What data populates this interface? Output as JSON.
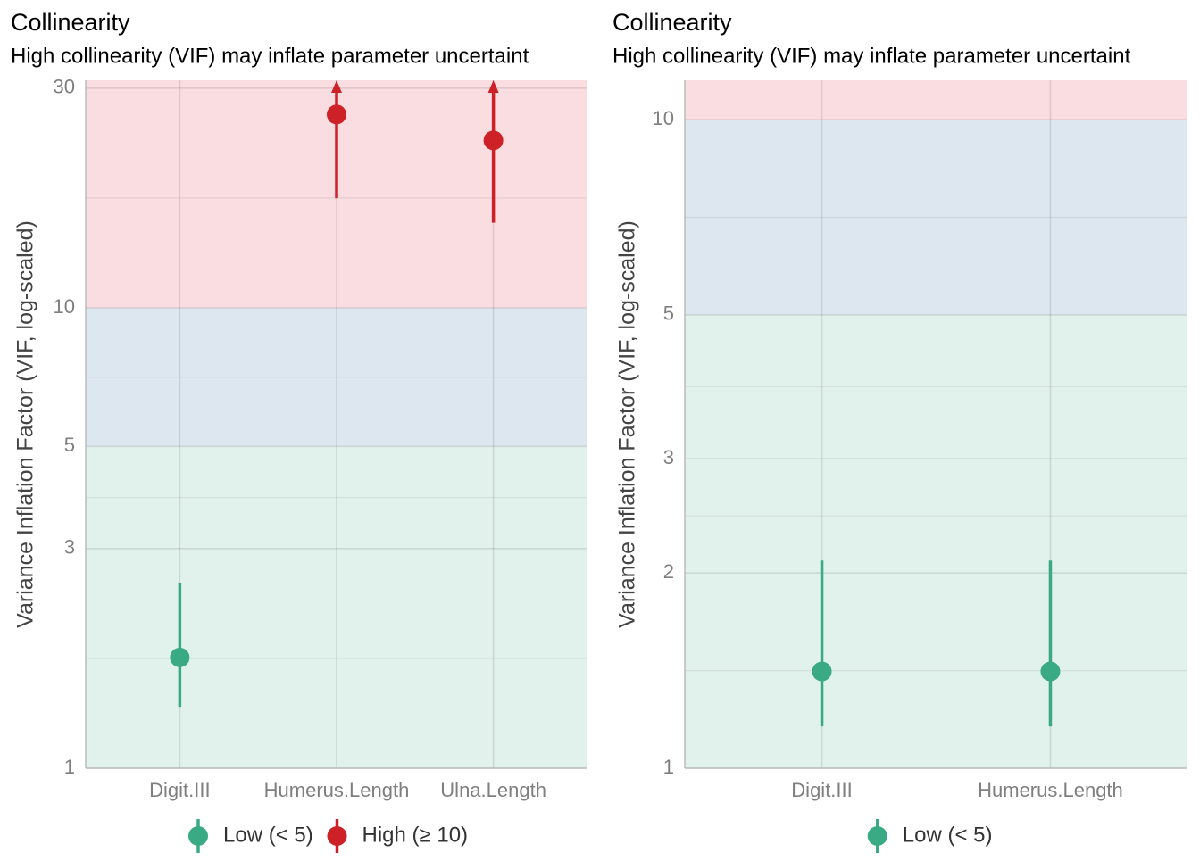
{
  "chart_data": [
    {
      "type": "pointrange",
      "title": "Collinearity",
      "subtitle": "High collinearity (VIF) may inflate parameter uncertaint",
      "y_label": "Variance Inflation Factor (VIF, log-scaled)",
      "log_y": true,
      "grid": true,
      "categories": [
        "Digit.III",
        "Humerus.Length",
        "Ulna.Length"
      ],
      "ylim": [
        1,
        31.2
      ],
      "yticks": [
        1,
        3,
        5,
        10,
        30
      ],
      "bands": [
        {
          "to": 5,
          "color": "#e1f1ec"
        },
        {
          "from": 5,
          "to": 10,
          "color": "#dde7f0"
        },
        {
          "from": 10,
          "color": "#f9dde0"
        }
      ],
      "series": [
        {
          "name": "Low (< 5)",
          "color": "#3aaa85",
          "values": [
            1.74,
            null,
            null
          ],
          "ci_low": [
            1.36,
            null,
            null
          ],
          "ci_high": [
            2.53,
            null,
            null
          ]
        },
        {
          "name": "High (≥ 10)",
          "color": "#cd2027",
          "values": [
            null,
            26.3,
            23.1
          ],
          "ci_low": [
            null,
            17.3,
            15.3
          ],
          "ci_high": [
            null,
            null,
            null
          ]
        }
      ]
    },
    {
      "type": "pointrange",
      "title": "Collinearity",
      "subtitle": "High collinearity (VIF) may inflate parameter uncertaint",
      "y_label": "Variance Inflation Factor (VIF, log-scaled)",
      "log_y": true,
      "grid": true,
      "categories": [
        "Digit.III",
        "Humerus.Length"
      ],
      "ylim": [
        1,
        11.5
      ],
      "yticks": [
        1,
        2,
        3,
        5,
        10
      ],
      "bands": [
        {
          "to": 5,
          "color": "#e1f1ec"
        },
        {
          "from": 5,
          "to": 10,
          "color": "#dde7f0"
        },
        {
          "from": 10,
          "color": "#f9dde0"
        }
      ],
      "series": [
        {
          "name": "Low (< 5)",
          "color": "#3aaa85",
          "values": [
            1.41,
            1.41
          ],
          "ci_low": [
            1.16,
            1.16
          ],
          "ci_high": [
            2.09,
            2.09
          ]
        }
      ]
    }
  ]
}
